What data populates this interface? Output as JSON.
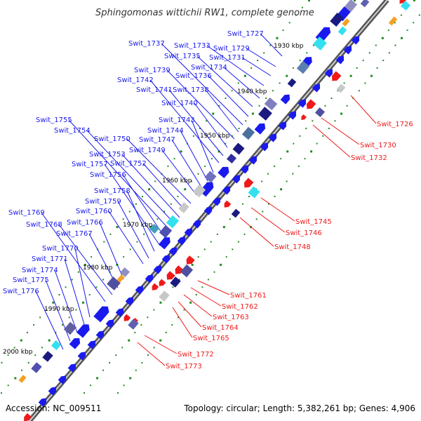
{
  "title": "Sphingomonas wittichii RW1, complete genome",
  "footer": {
    "accession": "Accession: NC_009511",
    "summary": "Topology: circular; Length: 5,382,261 bp; Genes: 4,906"
  },
  "kbp_ticks": [
    "1930 kbp",
    "1940 kbp",
    "1950 kbp",
    "1960 kbp",
    "1970 kbp",
    "1980 kbp",
    "1990 kbp",
    "2000 kbp"
  ],
  "genes_left": [
    "Swit_1727",
    "Swit_1729",
    "Swit_1731",
    "Swit_1733",
    "Swit_1734",
    "Swit_1735",
    "Swit_1736",
    "Swit_1737",
    "Swit_1738",
    "Swit_1739",
    "Swit_1740",
    "Swit_1741",
    "Swit_1742",
    "Swit_1743",
    "Swit_1744",
    "Swit_1747",
    "Swit_1749",
    "Swit_1750",
    "Swit_1752",
    "Swit_1753",
    "Swit_1754",
    "Swit_1755",
    "Swit_1756",
    "Swit_1757",
    "Swit_1758",
    "Swit_1759",
    "Swit_1760",
    "Swit_1766",
    "Swit_1767",
    "Swit_1768",
    "Swit_1769",
    "Swit_1770",
    "Swit_1771",
    "Swit_1774",
    "Swit_1775",
    "Swit_1776"
  ],
  "genes_right": [
    "Swit_1726",
    "Swit_1730",
    "Swit_1732",
    "Swit_1745",
    "Swit_1746",
    "Swit_1748",
    "Swit_1761",
    "Swit_1762",
    "Swit_1763",
    "Swit_1764",
    "Swit_1765",
    "Swit_1772",
    "Swit_1773"
  ],
  "colors": {
    "forward": "#1a1aee",
    "reverse": "#ee1a1a",
    "backbone": "#888888",
    "tick_dots": "#228b22",
    "cyan": "#33e0f0",
    "orange": "#f5a020",
    "navy": "#1a1a80",
    "grey": "#c8c8c8"
  }
}
